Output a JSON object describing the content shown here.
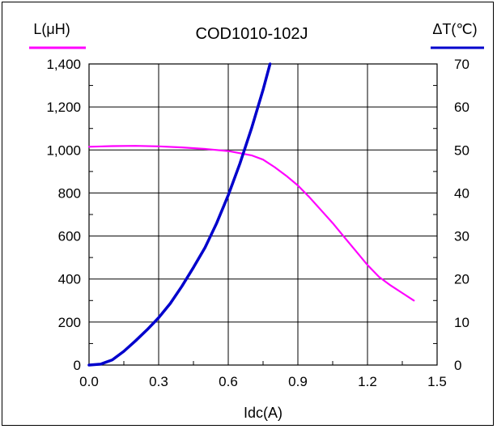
{
  "chart_data": {
    "type": "line",
    "title": "COD1010-102J",
    "xlabel": "Idc(A)",
    "xlim": [
      0,
      1.5
    ],
    "xticks": [
      "0.0",
      "0.3",
      "0.6",
      "0.9",
      "1.2",
      "1.5"
    ],
    "xtick_values": [
      0,
      0.3,
      0.6,
      0.9,
      1.2,
      1.5
    ],
    "y_left": {
      "label": "L(μH)",
      "ylim": [
        0,
        1400
      ],
      "ticks": [
        "0",
        "200",
        "400",
        "600",
        "800",
        "1,000",
        "1,200",
        "1,400"
      ],
      "tick_values": [
        0,
        200,
        400,
        600,
        800,
        1000,
        1200,
        1400
      ]
    },
    "y_right": {
      "label": "ΔT(℃)",
      "ylim": [
        0,
        70
      ],
      "ticks": [
        "0",
        "10",
        "20",
        "30",
        "40",
        "50",
        "60",
        "70"
      ],
      "tick_values": [
        0,
        10,
        20,
        30,
        40,
        50,
        60,
        70
      ]
    },
    "grid": true,
    "series": [
      {
        "axis": "left",
        "color": "#ff00ff",
        "x": [
          0.0,
          0.1,
          0.2,
          0.3,
          0.4,
          0.5,
          0.6,
          0.7,
          0.75,
          0.8,
          0.85,
          0.9,
          0.95,
          1.0,
          1.05,
          1.1,
          1.15,
          1.2,
          1.25,
          1.3,
          1.35,
          1.4
        ],
        "values": [
          1015,
          1018,
          1019,
          1017,
          1012,
          1005,
          995,
          975,
          955,
          920,
          880,
          835,
          780,
          720,
          660,
          595,
          530,
          465,
          410,
          370,
          335,
          300
        ]
      },
      {
        "axis": "right",
        "color": "#0000cc",
        "x": [
          0.0,
          0.05,
          0.1,
          0.15,
          0.2,
          0.25,
          0.3,
          0.35,
          0.4,
          0.45,
          0.5,
          0.55,
          0.6,
          0.65,
          0.7,
          0.75,
          0.78
        ],
        "values": [
          0,
          0.2,
          1.2,
          3.2,
          5.6,
          8.2,
          11.0,
          14.3,
          18.3,
          22.7,
          27.3,
          33.0,
          39.5,
          46.8,
          55.0,
          64.0,
          70.0
        ]
      }
    ]
  }
}
